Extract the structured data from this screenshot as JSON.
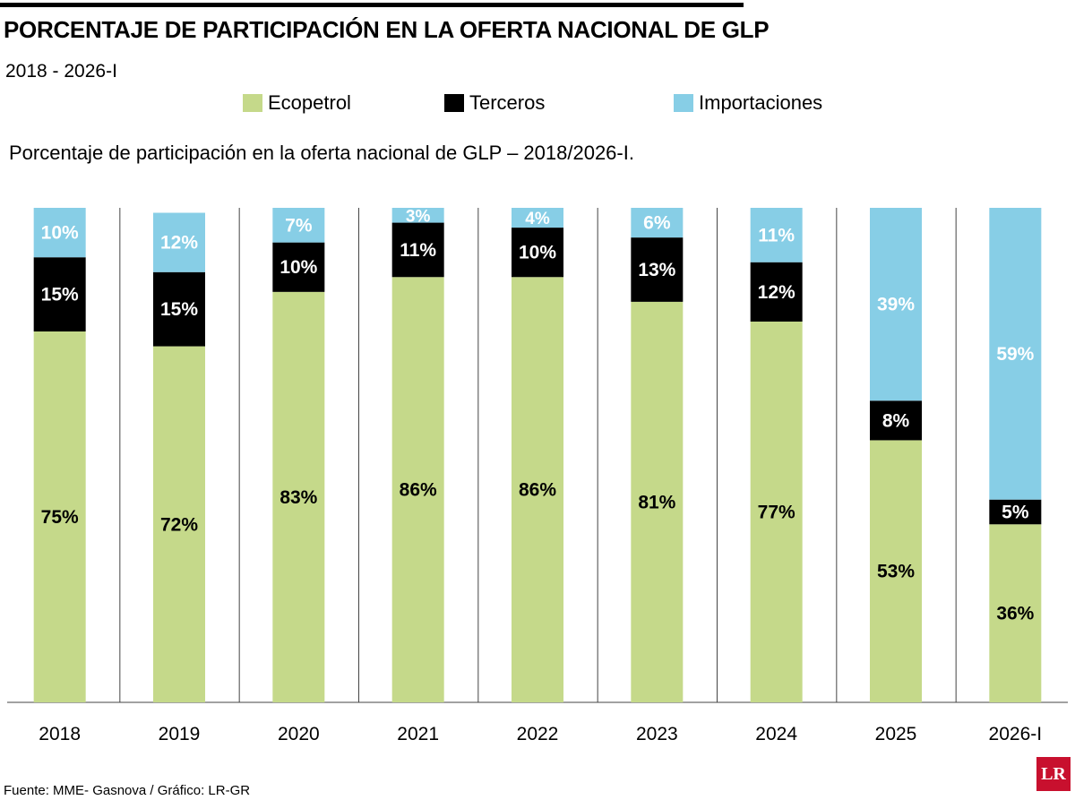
{
  "header": {
    "title": "PORCENTAJE DE PARTICIPACIÓN EN LA OFERTA NACIONAL DE GLP",
    "subtitle": "2018 - 2026-I",
    "description": "Porcentaje de participación en la oferta nacional de GLP – 2018/2026-I."
  },
  "legend": [
    {
      "label": "Ecopetrol",
      "color": "#c5d98a"
    },
    {
      "label": "Terceros",
      "color": "#000000"
    },
    {
      "label": "Importaciones",
      "color": "#87cee6"
    }
  ],
  "footer": {
    "source": "Fuente: MME- Gasnova / Gráfico: LR-GR",
    "logo_text": "LR"
  },
  "chart_data": {
    "type": "bar",
    "stacked": true,
    "title": "PORCENTAJE DE PARTICIPACIÓN EN LA OFERTA NACIONAL DE GLP",
    "subtitle": "2018 - 2026-I",
    "ylim": [
      0,
      100
    ],
    "grid": false,
    "legend_position": "top",
    "categories": [
      "2018",
      "2019",
      "2020",
      "2021",
      "2022",
      "2023",
      "2024",
      "2025",
      "2026-I"
    ],
    "series": [
      {
        "name": "Ecopetrol",
        "color": "#c5d98a",
        "label_color": "#000000",
        "values": [
          75,
          72,
          83,
          86,
          86,
          81,
          77,
          53,
          36
        ],
        "labels": [
          "75%",
          "72%",
          "83%",
          "86%",
          "86%",
          "81%",
          "77%",
          "53%",
          "36%"
        ]
      },
      {
        "name": "Terceros",
        "color": "#000000",
        "label_color": "#ffffff",
        "values": [
          15,
          15,
          10,
          11,
          10,
          13,
          12,
          8,
          5
        ],
        "labels": [
          "15%",
          "15%",
          "10%",
          "11%",
          "10%",
          "13%",
          "12%",
          "8%",
          "5%"
        ]
      },
      {
        "name": "Importaciones",
        "color": "#87cee6",
        "label_color": "#ffffff",
        "values": [
          10,
          12,
          7,
          3,
          4,
          6,
          11,
          39,
          59
        ],
        "labels": [
          "10%",
          "12%",
          "7%",
          "3%",
          "4%",
          "6%",
          "11%",
          "39%",
          "59%"
        ]
      }
    ]
  }
}
